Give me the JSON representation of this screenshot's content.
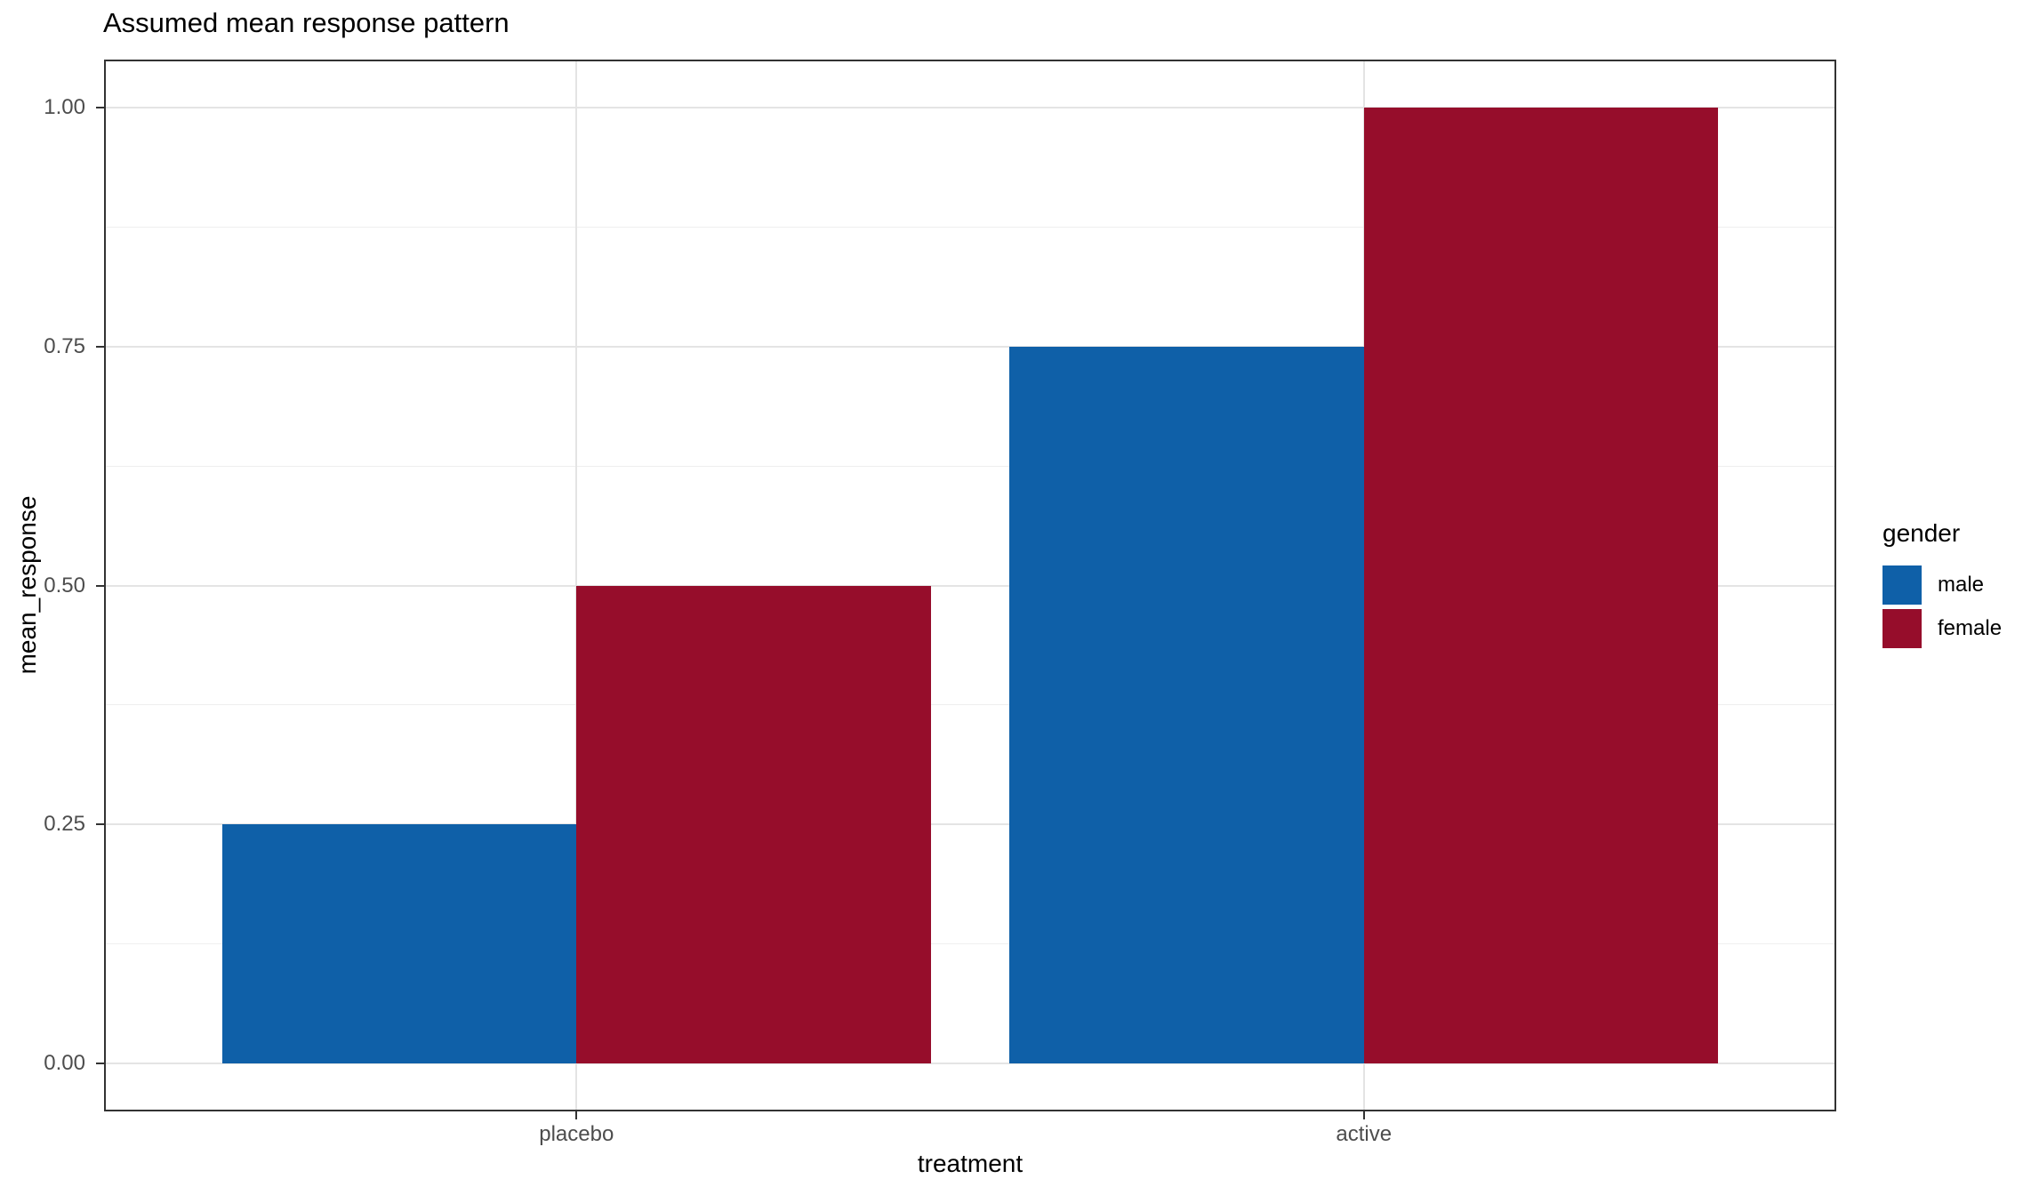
{
  "title": "Assumed mean response pattern",
  "chart_data": {
    "type": "bar",
    "title": "Assumed mean response pattern",
    "categories": [
      "placebo",
      "active"
    ],
    "series": [
      {
        "name": "male",
        "color": "#0F60A8",
        "values": [
          0.25,
          0.75
        ]
      },
      {
        "name": "female",
        "color": "#960D2B",
        "values": [
          0.5,
          1.0
        ]
      }
    ],
    "xlabel": "treatment",
    "ylabel": "mean_response",
    "ylim": [
      0,
      1
    ],
    "yticks": [
      0,
      0.25,
      0.5,
      0.75,
      1
    ],
    "ytick_labels": [
      "0.00",
      "0.25",
      "0.50",
      "0.75",
      "1.00"
    ],
    "grid": true,
    "grid_minor": true,
    "legend": {
      "title": "gender",
      "position": "right",
      "entries": [
        "male",
        "female"
      ]
    },
    "bar_layout": "dodge"
  }
}
